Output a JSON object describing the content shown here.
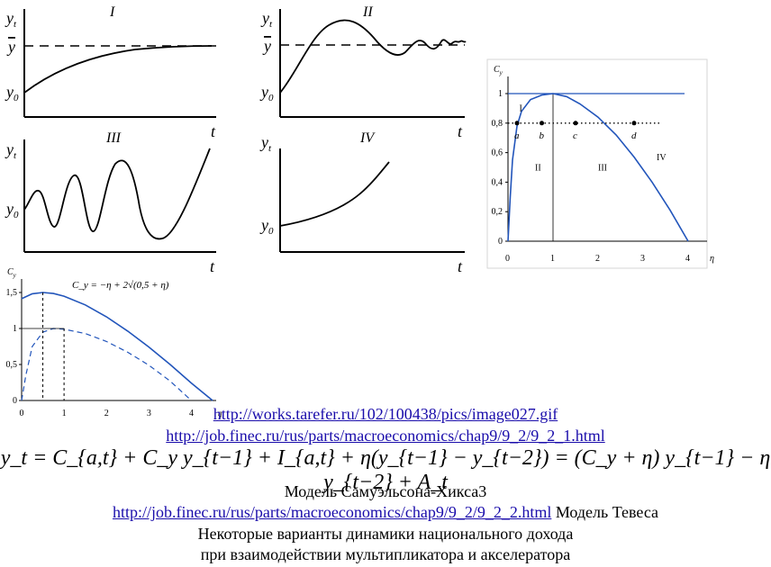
{
  "panels": {
    "p1": {
      "roman": "I",
      "y_label": "y",
      "y_sub": "t",
      "ybar": "y",
      "y0": "y",
      "y0_sub": "0",
      "t": "t"
    },
    "p2": {
      "roman": "II",
      "y_label": "y",
      "y_sub": "t",
      "ybar": "y",
      "y0": "y",
      "y0_sub": "0",
      "t": "t"
    },
    "p3": {
      "roman": "III",
      "y_label": "y",
      "y_sub": "t",
      "y0": "y",
      "y0_sub": "0",
      "t": "t"
    },
    "p4": {
      "roman": "IV",
      "y_label": "y",
      "y_sub": "t",
      "y0": "y",
      "y0_sub": "0",
      "t": "t"
    }
  },
  "chart_data": [
    {
      "type": "line",
      "y_title": "C",
      "y_title_sub": "y",
      "x_title": "η",
      "xlim": [
        0,
        4
      ],
      "ylim": [
        0,
        1
      ],
      "x_ticks": [
        "0",
        "1",
        "2",
        "3",
        "4"
      ],
      "y_ticks": [
        "0",
        "0,2",
        "0,4",
        "0,6",
        "0,8",
        "1"
      ],
      "series": [
        {
          "x": [
            0,
            0.05,
            0.1,
            0.2,
            0.3,
            0.5,
            0.75,
            1,
            1.3,
            1.6,
            2,
            2.4,
            2.8,
            3.2,
            3.6,
            4
          ],
          "values": [
            0,
            0.3,
            0.55,
            0.78,
            0.88,
            0.96,
            0.99,
            1,
            0.98,
            0.93,
            0.84,
            0.72,
            0.57,
            0.4,
            0.21,
            0
          ]
        }
      ],
      "reference_line_y": 1,
      "dotted_line_y": 0.8,
      "points": [
        {
          "label": "a",
          "x": 0.2
        },
        {
          "label": "b",
          "x": 0.75
        },
        {
          "label": "c",
          "x": 1.5
        },
        {
          "label": "d",
          "x": 2.8
        }
      ],
      "regions": [
        "I",
        "II",
        "III",
        "IV"
      ]
    },
    {
      "type": "line",
      "y_title": "C",
      "y_title_sub": "y",
      "x_title": "η",
      "formula": "C_y = −η + 2√(0,5 + η)",
      "xlim": [
        0,
        4.5
      ],
      "ylim": [
        0,
        1.5
      ],
      "x_ticks": [
        "0",
        "1",
        "2",
        "3",
        "4"
      ],
      "y_ticks": [
        "0",
        "0,5",
        "1",
        "1,5"
      ],
      "series": [
        {
          "x": [
            0,
            0.25,
            0.5,
            0.75,
            1,
            1.5,
            2,
            2.5,
            3,
            3.5,
            4,
            4.5
          ],
          "values": [
            1.414,
            1.482,
            1.5,
            1.486,
            1.449,
            1.328,
            1.162,
            0.964,
            0.742,
            0.5,
            0.243,
            0
          ]
        },
        {
          "x": [
            0,
            0.1,
            0.25,
            0.5,
            0.75,
            1,
            1.5,
            2,
            2.5,
            3,
            3.5,
            4
          ],
          "values": [
            0,
            0.35,
            0.75,
            0.95,
            1,
            0.99,
            0.93,
            0.82,
            0.67,
            0.49,
            0.27,
            0
          ]
        }
      ],
      "dashed_ticks_x": [
        0.5,
        1
      ]
    }
  ],
  "links": {
    "link1": "http://works.tarefer.ru/102/100438/pics/image027.gif",
    "link2": "http://job.finec.ru/rus/parts/macroeconomics/chap9/9_2/9_2_1.html",
    "link3": "http://job.finec.ru/rus/parts/macroeconomics/chap9/9_2/9_2_2.html"
  },
  "formula": "y_t = C_{a,t} + C_y y_{t−1} + I_{a,t} + η(y_{t−1} − y_{t−2}) = (C_y + η) y_{t−1} − η y_{t−2} + A_t",
  "text": {
    "model1": "Модель Самуэльсона-Хикса3",
    "model2": "Модель Тевеса",
    "line1": "Некоторые варианты динамики национального дохода",
    "line2": "при взаимодействии мультипликатора и акселератора"
  }
}
